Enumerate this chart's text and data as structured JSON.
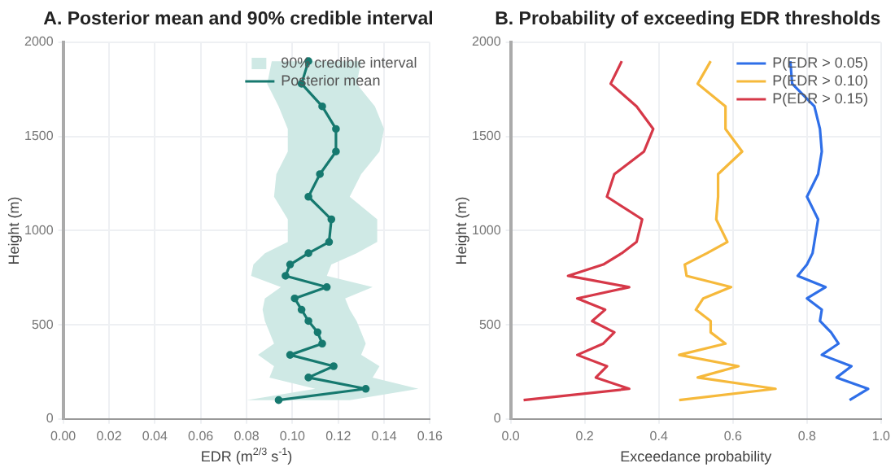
{
  "chart_data": [
    {
      "type": "line",
      "title": "A. Posterior mean and 90% credible interval",
      "xlabel": "EDR (m$^{2/3}$ s$^{-1}$)",
      "ylabel": "Height (m)",
      "xlim": [
        0,
        0.16
      ],
      "xticks": [
        {
          "value": 0,
          "label": "0.00"
        },
        {
          "value": 0.02,
          "label": "0.02"
        },
        {
          "value": 0.04,
          "label": "0.04"
        },
        {
          "value": 0.06,
          "label": "0.06"
        },
        {
          "value": 0.08,
          "label": "0.08"
        },
        {
          "value": 0.1,
          "label": "0.10"
        },
        {
          "value": 0.12,
          "label": "0.12"
        },
        {
          "value": 0.14,
          "label": "0.14"
        },
        {
          "value": 0.16,
          "label": "0.16"
        }
      ],
      "ylim": [
        0,
        2000
      ],
      "yticks": [
        0,
        500,
        1000,
        1500,
        2000
      ],
      "grid": true,
      "legend": "top right",
      "series": [
        {
          "type": "area",
          "name": "90% credible interval",
          "color": "#cfe9e5",
          "x": [
            0.08,
            0.11,
            0.09,
            0.092,
            0.085,
            0.092,
            0.09,
            0.088,
            0.087,
            0.088,
            0.095,
            0.082,
            0.083,
            0.088,
            0.098,
            0.098,
            0.092,
            0.093,
            0.098,
            0.098,
            0.094,
            0.089,
            0.091,
            0.13,
            0.128,
            0.136,
            0.14,
            0.138,
            0.13,
            0.125,
            0.137,
            0.137,
            0.128,
            0.117,
            0.115,
            0.135,
            0.123,
            0.125,
            0.128,
            0.13,
            0.132,
            0.13,
            0.138,
            0.135,
            0.155,
            0.125
          ],
          "values": [
            100,
            160,
            220,
            280,
            340,
            400,
            460,
            520,
            580,
            640,
            700,
            760,
            820,
            880,
            940,
            1060,
            1180,
            1300,
            1420,
            1540,
            1660,
            1780,
            1900,
            1900,
            1780,
            1660,
            1540,
            1420,
            1300,
            1180,
            1060,
            940,
            880,
            820,
            760,
            700,
            640,
            580,
            520,
            460,
            400,
            340,
            280,
            220,
            160,
            100
          ]
        },
        {
          "type": "line",
          "name": "Posterior mean",
          "color": "#16796f",
          "marker": "circle",
          "x": [
            0.094,
            0.132,
            0.107,
            0.118,
            0.099,
            0.113,
            0.111,
            0.107,
            0.104,
            0.101,
            0.115,
            0.097,
            0.099,
            0.107,
            0.116,
            0.117,
            0.107,
            0.112,
            0.119,
            0.119,
            0.113,
            0.104,
            0.107
          ],
          "values": [
            100,
            160,
            220,
            280,
            340,
            400,
            460,
            520,
            580,
            640,
            700,
            760,
            820,
            880,
            940,
            1060,
            1180,
            1300,
            1420,
            1540,
            1660,
            1780,
            1900
          ]
        }
      ]
    },
    {
      "type": "line",
      "title": "B. Probability of exceeding EDR thresholds",
      "xlabel": "Exceedance probability",
      "ylabel": "Height (m)",
      "xlim": [
        0,
        1
      ],
      "xticks": [
        {
          "value": 0,
          "label": "0.0"
        },
        {
          "value": 0.2,
          "label": "0.2"
        },
        {
          "value": 0.4,
          "label": "0.4"
        },
        {
          "value": 0.6,
          "label": "0.6"
        },
        {
          "value": 0.8,
          "label": "0.8"
        },
        {
          "value": 1,
          "label": "1.0"
        }
      ],
      "ylim": [
        0,
        2000
      ],
      "yticks": [
        0,
        500,
        1000,
        1500,
        2000
      ],
      "grid": true,
      "legend": "top right",
      "series": [
        {
          "name": "P(EDR > 0.05)",
          "color": "#2f6fe8",
          "x": [
            0.915,
            0.965,
            0.88,
            0.92,
            0.84,
            0.885,
            0.865,
            0.835,
            0.84,
            0.8,
            0.85,
            0.775,
            0.8,
            0.815,
            0.82,
            0.83,
            0.8,
            0.83,
            0.84,
            0.835,
            0.82,
            0.76,
            0.755
          ],
          "values": [
            100,
            160,
            220,
            280,
            340,
            400,
            460,
            520,
            580,
            640,
            700,
            760,
            820,
            880,
            940,
            1060,
            1180,
            1300,
            1420,
            1540,
            1660,
            1780,
            1900
          ]
        },
        {
          "name": "P(EDR > 0.10)",
          "color": "#f6b93b",
          "x": [
            0.455,
            0.715,
            0.505,
            0.615,
            0.455,
            0.58,
            0.54,
            0.54,
            0.5,
            0.52,
            0.595,
            0.475,
            0.47,
            0.53,
            0.585,
            0.555,
            0.56,
            0.56,
            0.625,
            0.58,
            0.58,
            0.505,
            0.54
          ],
          "values": [
            100,
            160,
            220,
            280,
            340,
            400,
            460,
            520,
            580,
            640,
            700,
            760,
            820,
            880,
            940,
            1060,
            1180,
            1300,
            1420,
            1540,
            1660,
            1780,
            1900
          ]
        },
        {
          "name": "P(EDR > 0.15)",
          "color": "#d63848",
          "x": [
            0.035,
            0.32,
            0.23,
            0.26,
            0.18,
            0.25,
            0.28,
            0.22,
            0.255,
            0.18,
            0.32,
            0.155,
            0.25,
            0.3,
            0.34,
            0.355,
            0.26,
            0.28,
            0.36,
            0.385,
            0.34,
            0.27,
            0.3
          ],
          "values": [
            100,
            160,
            220,
            280,
            340,
            400,
            460,
            520,
            580,
            640,
            700,
            760,
            820,
            880,
            940,
            1060,
            1180,
            1300,
            1420,
            1540,
            1660,
            1780,
            1900
          ]
        }
      ]
    }
  ]
}
